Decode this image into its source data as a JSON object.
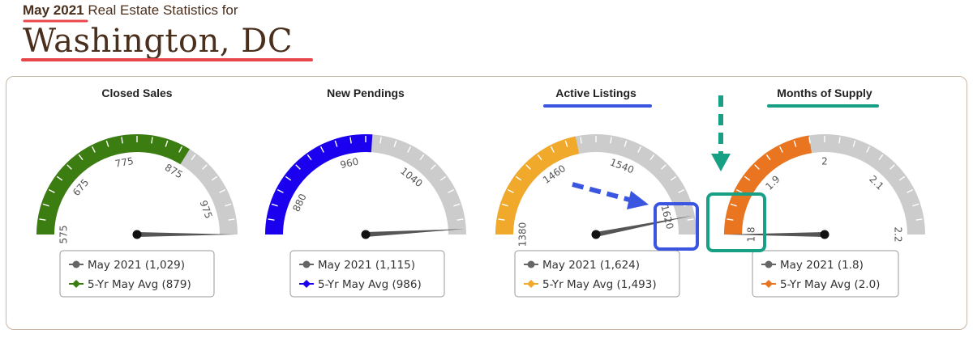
{
  "header": {
    "period": "May 2021",
    "subtitle_rest": "Real Estate Statistics for",
    "title": "Washington, DC"
  },
  "colors": {
    "brown": "#4a2f1d",
    "highlight_red": "#e8464a",
    "highlight_blue": "#3a55e0",
    "highlight_green": "#18a085",
    "track_gray": "#cccccc",
    "needle": "#555555"
  },
  "chart_data": [
    {
      "type": "gauge",
      "title": "Closed Sales",
      "min": 575,
      "max": 1025,
      "band_color": "#3c7d12",
      "band_to": 879,
      "tick_labels": [
        "575",
        "675",
        "775",
        "875",
        "975"
      ],
      "tick_values": [
        575,
        675,
        775,
        875,
        975
      ],
      "current": 1029,
      "legend": [
        {
          "marker": "circle",
          "color": "#666666",
          "text": "May 2021 (1,029)"
        },
        {
          "marker": "diamond",
          "color": "#3c7d12",
          "text": "5-Yr May Avg (879)"
        }
      ]
    },
    {
      "type": "gauge",
      "title": "New Pendings",
      "min": 840,
      "max": 1120,
      "band_color": "#1a00ee",
      "band_to": 986,
      "tick_labels": [
        "880",
        "960",
        "1040"
      ],
      "tick_values": [
        880,
        960,
        1040
      ],
      "current": 1115,
      "legend": [
        {
          "marker": "circle",
          "color": "#666666",
          "text": "May 2021 (1,115)"
        },
        {
          "marker": "diamond",
          "color": "#1a00ee",
          "text": "5-Yr May Avg (986)"
        }
      ]
    },
    {
      "type": "gauge",
      "title": "Active Listings",
      "min": 1380,
      "max": 1640,
      "band_color": "#f0a92a",
      "band_to": 1493,
      "tick_labels": [
        "1380",
        "1460",
        "1540",
        "1620"
      ],
      "tick_values": [
        1380,
        1460,
        1540,
        1620
      ],
      "current": 1624,
      "legend": [
        {
          "marker": "circle",
          "color": "#666666",
          "text": "May 2021 (1,624)"
        },
        {
          "marker": "diamond",
          "color": "#f0a92a",
          "text": "5-Yr May Avg (1,493)"
        }
      ]
    },
    {
      "type": "gauge",
      "title": "Months of Supply",
      "min": 1.8,
      "max": 2.2,
      "band_color": "#ea7520",
      "band_to": 1.98,
      "tick_labels": [
        "1.8",
        "1.9",
        "2",
        "2.1",
        "2.2"
      ],
      "tick_values": [
        1.8,
        1.9,
        2.0,
        2.1,
        2.2
      ],
      "current": 1.8,
      "legend": [
        {
          "marker": "circle",
          "color": "#666666",
          "text": "May 2021 (1.8)"
        },
        {
          "marker": "diamond",
          "color": "#ea7520",
          "text": "5-Yr May Avg (2.0)"
        }
      ]
    }
  ]
}
